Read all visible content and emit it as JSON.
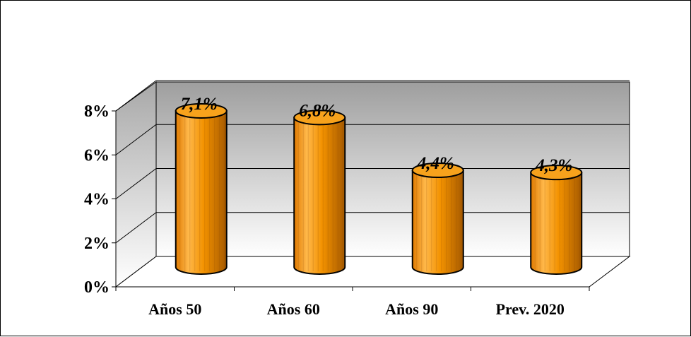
{
  "chart_data": {
    "type": "bar",
    "categories": [
      "Años 50",
      "Años 60",
      "Años 90",
      "Prev. 2020"
    ],
    "values": [
      7.1,
      6.8,
      4.4,
      4.3
    ],
    "data_labels": [
      "7,1%",
      "6,8%",
      "4,4%",
      "4,3%"
    ],
    "y_ticks": [
      "0%",
      "2%",
      "4%",
      "6%",
      "8%"
    ],
    "ylim": [
      0,
      8
    ],
    "title": "",
    "xlabel": "",
    "ylabel": "",
    "grid": true,
    "style": "3d-cylinder",
    "colors": {
      "bar": "#F39200",
      "bar_dark": "#B36400",
      "bar_light": "#FFB84A",
      "wall_top": "#9E9E9E",
      "wall_bottom": "#FFFFFF"
    }
  }
}
